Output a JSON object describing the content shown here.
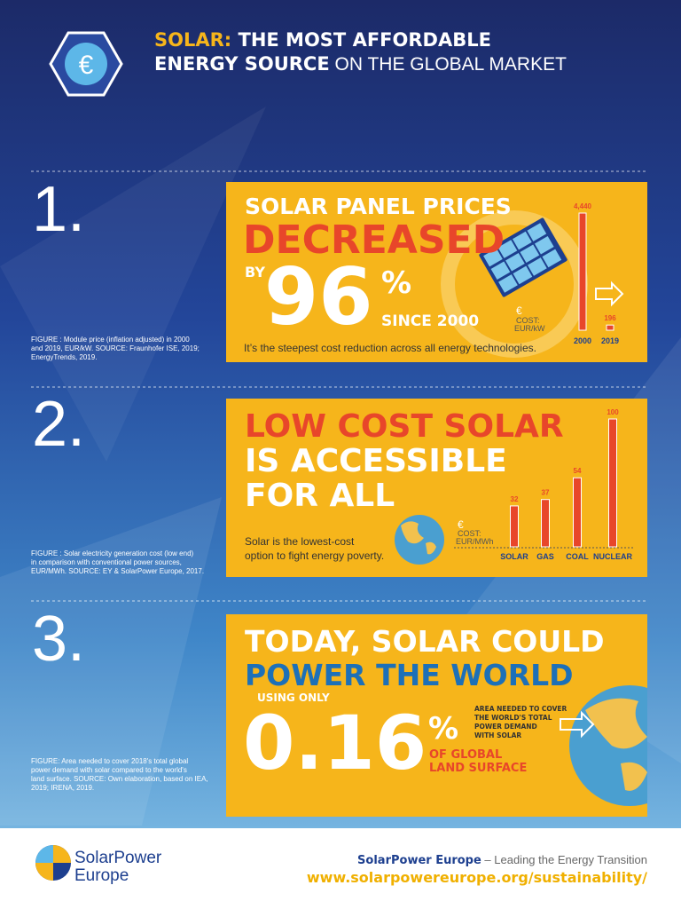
{
  "header": {
    "title_line1": [
      "SOLAR:",
      " THE MOST AFFORDABLE"
    ],
    "title_line2": [
      "ENERGY SOURCE",
      " ON THE GLOBAL MARKET"
    ],
    "icon": "€"
  },
  "sections": [
    {
      "number": "1.",
      "heading": "SOLAR PANEL PRICES",
      "highlight": "DECREASED",
      "by": "BY",
      "big": "96",
      "percent": "%",
      "since": "SINCE 2000",
      "caption": "It’s the steepest cost reduction across all energy technologies.",
      "figure": [
        "FIGURE : Module price (inflation adjusted) in 2000",
        "and 2019, EUR/kW. SOURCE: Fraunhofer ISE, 2019;",
        "EnergyTrends, 2019."
      ],
      "chart": {
        "type": "bar",
        "currency": "€",
        "unit_title": "COST:",
        "unit": "EUR/kW",
        "categories": [
          "2000",
          "2019"
        ],
        "values": [
          4440,
          196
        ],
        "value_labels": [
          "4,440",
          "196"
        ],
        "color": "#e8462a"
      }
    },
    {
      "number": "2.",
      "heading": [
        "LOW COST SOLAR",
        "IS ACCESSIBLE",
        "FOR ALL"
      ],
      "caption": [
        "Solar is the lowest-cost",
        "option to fight energy poverty."
      ],
      "figure": [
        "FIGURE : Solar electricity generation cost (low end)",
        "in comparison with conventional power sources,",
        "EUR/MWh. SOURCE: EY & SolarPower Europe, 2017."
      ],
      "chart": {
        "type": "bar",
        "currency": "€",
        "unit_title": "COST:",
        "unit": "EUR/MWh",
        "categories": [
          "SOLAR",
          "GAS",
          "COAL",
          "NUCLEAR"
        ],
        "values": [
          32,
          37,
          54,
          100
        ],
        "color": "#e8462a"
      }
    },
    {
      "number": "3.",
      "heading": "TODAY, SOLAR COULD",
      "highlight": "POWER THE WORLD",
      "by": "USING ONLY",
      "big": "0.16",
      "percent": "%",
      "since": [
        "OF GLOBAL",
        "LAND SURFACE"
      ],
      "note": [
        "AREA NEEDED TO COVER",
        "THE WORLD'S TOTAL",
        "POWER DEMAND",
        "WITH SOLAR"
      ],
      "figure": [
        "FIGURE: Area needed to cover 2018's total global",
        "power demand with solar compared to the world's",
        "land surface. SOURCE: Own elaboration, based on IEA,",
        "2019; IRENA, 2019."
      ]
    }
  ],
  "footer": {
    "logo": [
      "SolarPower",
      "Europe"
    ],
    "tagline": [
      "SolarPower Europe",
      " – Leading the Energy Transition"
    ],
    "url": "www.solarpowereurope.org/sustainability/"
  }
}
